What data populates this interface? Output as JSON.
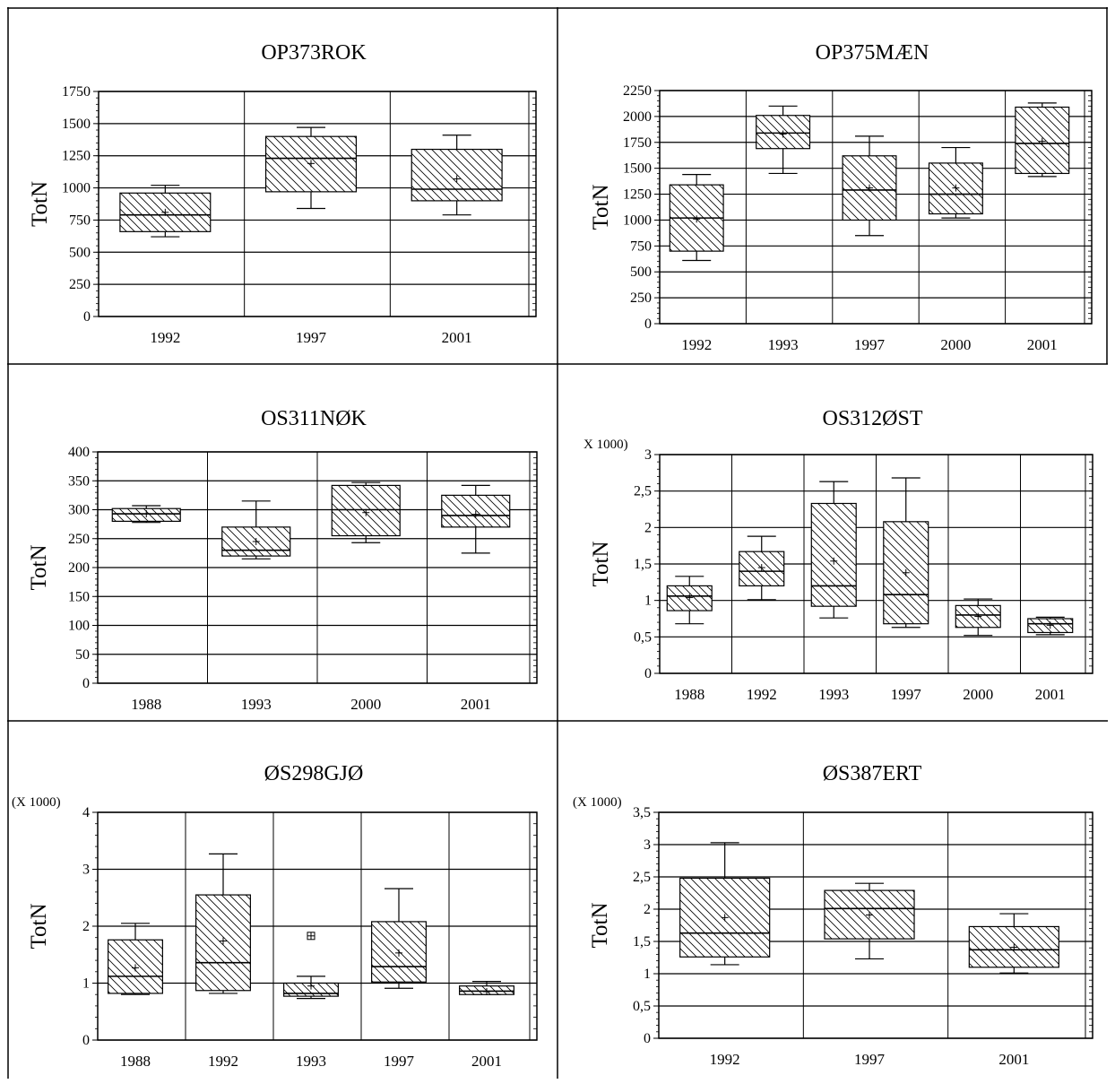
{
  "chart_data": [
    {
      "type": "box",
      "title": "OP373ROK",
      "ylabel": "TotN",
      "yscale_label": "",
      "ylim": [
        0,
        1750
      ],
      "yticks": [
        0,
        250,
        500,
        750,
        1000,
        1250,
        1500,
        1750
      ],
      "ytick_labels": [
        "0",
        "250",
        "500",
        "750",
        "1000",
        "1250",
        "1500",
        "1750"
      ],
      "categories": [
        "1992",
        "1997",
        "2001"
      ],
      "boxes": [
        {
          "min": 620,
          "q1": 660,
          "median": 790,
          "q3": 960,
          "max": 1020,
          "mean": 810
        },
        {
          "min": 840,
          "q1": 970,
          "median": 1230,
          "q3": 1400,
          "max": 1470,
          "mean": 1190
        },
        {
          "min": 790,
          "q1": 900,
          "median": 990,
          "q3": 1300,
          "max": 1410,
          "mean": 1070
        }
      ]
    },
    {
      "type": "box",
      "title": "OP375MÆN",
      "ylabel": "TotN",
      "yscale_label": "",
      "ylim": [
        0,
        2250
      ],
      "yticks": [
        0,
        250,
        500,
        750,
        1000,
        1250,
        1500,
        1750,
        2000,
        2250
      ],
      "ytick_labels": [
        "0",
        "250",
        "500",
        "750",
        "1000",
        "1250",
        "1500",
        "1750",
        "2000",
        "2250"
      ],
      "categories": [
        "1992",
        "1993",
        "1997",
        "2000",
        "2001"
      ],
      "boxes": [
        {
          "min": 610,
          "q1": 700,
          "median": 1020,
          "q3": 1340,
          "max": 1440,
          "mean": 1010
        },
        {
          "min": 1450,
          "q1": 1690,
          "median": 1840,
          "q3": 2010,
          "max": 2100,
          "mean": 1830
        },
        {
          "min": 850,
          "q1": 1000,
          "median": 1290,
          "q3": 1620,
          "max": 1810,
          "mean": 1310
        },
        {
          "min": 1020,
          "q1": 1060,
          "median": 1250,
          "q3": 1550,
          "max": 1700,
          "mean": 1310
        },
        {
          "min": 1420,
          "q1": 1450,
          "median": 1740,
          "q3": 2090,
          "max": 2130,
          "mean": 1760
        }
      ]
    },
    {
      "type": "box",
      "title": "OS311NØK",
      "ylabel": "TotN",
      "yscale_label": "",
      "ylim": [
        0,
        400
      ],
      "yticks": [
        0,
        50,
        100,
        150,
        200,
        250,
        300,
        350,
        400
      ],
      "ytick_labels": [
        "0",
        "50",
        "100",
        "150",
        "200",
        "250",
        "300",
        "350",
        "400"
      ],
      "categories": [
        "1988",
        "1993",
        "2000",
        "2001"
      ],
      "boxes": [
        {
          "min": 278,
          "q1": 280,
          "median": 293,
          "q3": 302,
          "max": 307,
          "mean": 293
        },
        {
          "min": 215,
          "q1": 220,
          "median": 230,
          "q3": 270,
          "max": 315,
          "mean": 245
        },
        {
          "min": 243,
          "q1": 255,
          "median": 300,
          "q3": 342,
          "max": 347,
          "mean": 295
        },
        {
          "min": 225,
          "q1": 270,
          "median": 290,
          "q3": 325,
          "max": 342,
          "mean": 292
        }
      ]
    },
    {
      "type": "box",
      "title": "OS312ØST",
      "ylabel": "TotN",
      "yscale_label": "X 1000)",
      "ylim": [
        0,
        3
      ],
      "yticks": [
        0,
        0.5,
        1,
        1.5,
        2,
        2.5,
        3
      ],
      "ytick_labels": [
        "0",
        "0,5",
        "1",
        "1,5",
        "2",
        "2,5",
        "3"
      ],
      "categories": [
        "1988",
        "1992",
        "1993",
        "1997",
        "2000",
        "2001"
      ],
      "boxes": [
        {
          "min": 0.68,
          "q1": 0.86,
          "median": 1.06,
          "q3": 1.2,
          "max": 1.33,
          "mean": 1.04
        },
        {
          "min": 1.01,
          "q1": 1.2,
          "median": 1.4,
          "q3": 1.67,
          "max": 1.88,
          "mean": 1.45
        },
        {
          "min": 0.76,
          "q1": 0.92,
          "median": 1.2,
          "q3": 2.33,
          "max": 2.63,
          "mean": 1.54
        },
        {
          "min": 0.63,
          "q1": 0.68,
          "median": 1.08,
          "q3": 2.08,
          "max": 2.68,
          "mean": 1.38
        },
        {
          "min": 0.52,
          "q1": 0.63,
          "median": 0.8,
          "q3": 0.93,
          "max": 1.02,
          "mean": 0.78
        },
        {
          "min": 0.53,
          "q1": 0.56,
          "median": 0.68,
          "q3": 0.75,
          "max": 0.77,
          "mean": 0.66
        }
      ]
    },
    {
      "type": "box",
      "title": "ØS298GJØ",
      "ylabel": "TotN",
      "yscale_label": "(X 1000)",
      "ylim": [
        0,
        4
      ],
      "yticks": [
        0,
        1,
        2,
        3,
        4
      ],
      "ytick_labels": [
        "0",
        "1",
        "2",
        "3",
        "4"
      ],
      "categories": [
        "1988",
        "1992",
        "1993",
        "1997",
        "2001"
      ],
      "boxes": [
        {
          "min": 0.8,
          "q1": 0.82,
          "median": 1.12,
          "q3": 1.76,
          "max": 2.05,
          "mean": 1.27
        },
        {
          "min": 0.82,
          "q1": 0.87,
          "median": 1.36,
          "q3": 2.55,
          "max": 3.27,
          "mean": 1.74
        },
        {
          "min": 0.73,
          "q1": 0.77,
          "median": 0.82,
          "q3": 1.0,
          "max": 1.12,
          "mean": 0.95,
          "outliers": [
            1.83
          ]
        },
        {
          "min": 0.91,
          "q1": 1.02,
          "median": 1.29,
          "q3": 2.08,
          "max": 2.66,
          "mean": 1.53
        },
        {
          "min": 0.8,
          "q1": 0.8,
          "median": 0.86,
          "q3": 0.95,
          "max": 1.03,
          "mean": 0.85
        }
      ]
    },
    {
      "type": "box",
      "title": "ØS387ERT",
      "ylabel": "TotN",
      "yscale_label": "(X 1000)",
      "ylim": [
        0,
        3.5
      ],
      "yticks": [
        0,
        0.5,
        1,
        1.5,
        2,
        2.5,
        3,
        3.5
      ],
      "ytick_labels": [
        "0",
        "0,5",
        "1",
        "1,5",
        "2",
        "2,5",
        "3",
        "3,5"
      ],
      "categories": [
        "1992",
        "1997",
        "2001"
      ],
      "boxes": [
        {
          "min": 1.14,
          "q1": 1.26,
          "median": 1.63,
          "q3": 2.48,
          "max": 3.03,
          "mean": 1.87
        },
        {
          "min": 1.23,
          "q1": 1.54,
          "median": 2.01,
          "q3": 2.29,
          "max": 2.4,
          "mean": 1.91
        },
        {
          "min": 1.01,
          "q1": 1.1,
          "median": 1.37,
          "q3": 1.73,
          "max": 1.93,
          "mean": 1.41
        }
      ]
    }
  ]
}
